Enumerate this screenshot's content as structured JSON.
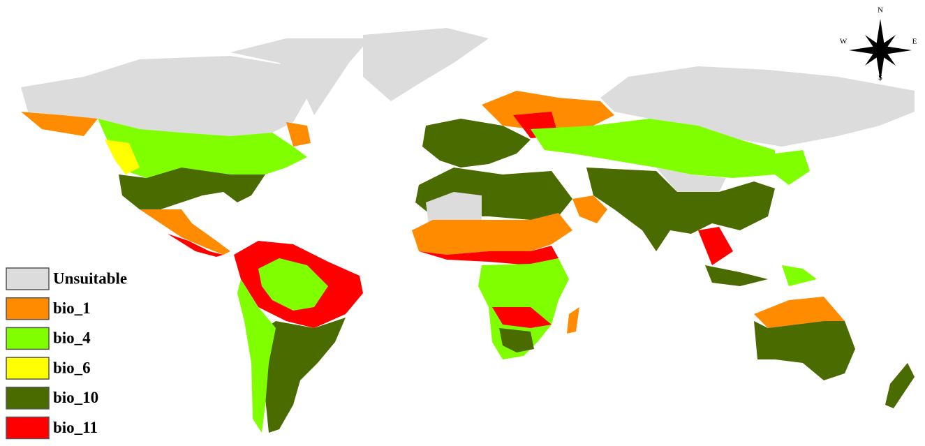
{
  "legend": [
    {
      "label": "Unsuitable",
      "color": "#dcdcdc"
    },
    {
      "label": "bio_1",
      "color": "#ff8c00"
    },
    {
      "label": "bio_4",
      "color": "#80ff00"
    },
    {
      "label": "bio_6",
      "color": "#ffff00"
    },
    {
      "label": "bio_10",
      "color": "#4a6b00"
    },
    {
      "label": "bio_11",
      "color": "#ff0000"
    }
  ],
  "compass": {
    "north": "N",
    "south": "S",
    "west": "W",
    "east": "E"
  }
}
